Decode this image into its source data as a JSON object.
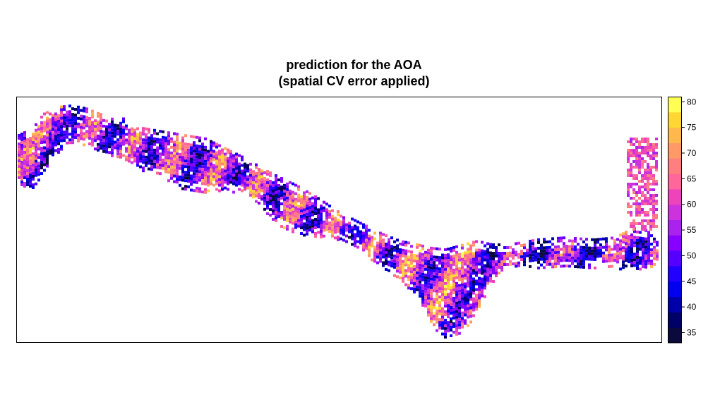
{
  "title_line1": "prediction for the AOA",
  "title_line2": "(spatial CV error applied)",
  "chart_data": {
    "type": "heatmap",
    "title": "prediction for the AOA (spatial CV error applied)",
    "colorbar": {
      "range": [
        33,
        81
      ],
      "ticks": [
        35,
        40,
        45,
        50,
        55,
        60,
        65,
        70,
        75,
        80
      ],
      "breaks": [
        33,
        36,
        39,
        42,
        45,
        48,
        51,
        54,
        57,
        60,
        63,
        66,
        69,
        72,
        75,
        78,
        81
      ],
      "colors": [
        "#0a0a3c",
        "#000066",
        "#0000aa",
        "#0000ee",
        "#2200ff",
        "#5500ff",
        "#8800ff",
        "#aa22ee",
        "#cc33dd",
        "#ee44bb",
        "#ff6699",
        "#ff7f80",
        "#ff9966",
        "#ffb84d",
        "#ffd633",
        "#ffff55"
      ]
    },
    "map_extent_note": "raster covers a narrow west-east band; values range approx. 35 to 80",
    "predicted_value_range": [
      35,
      80
    ]
  }
}
